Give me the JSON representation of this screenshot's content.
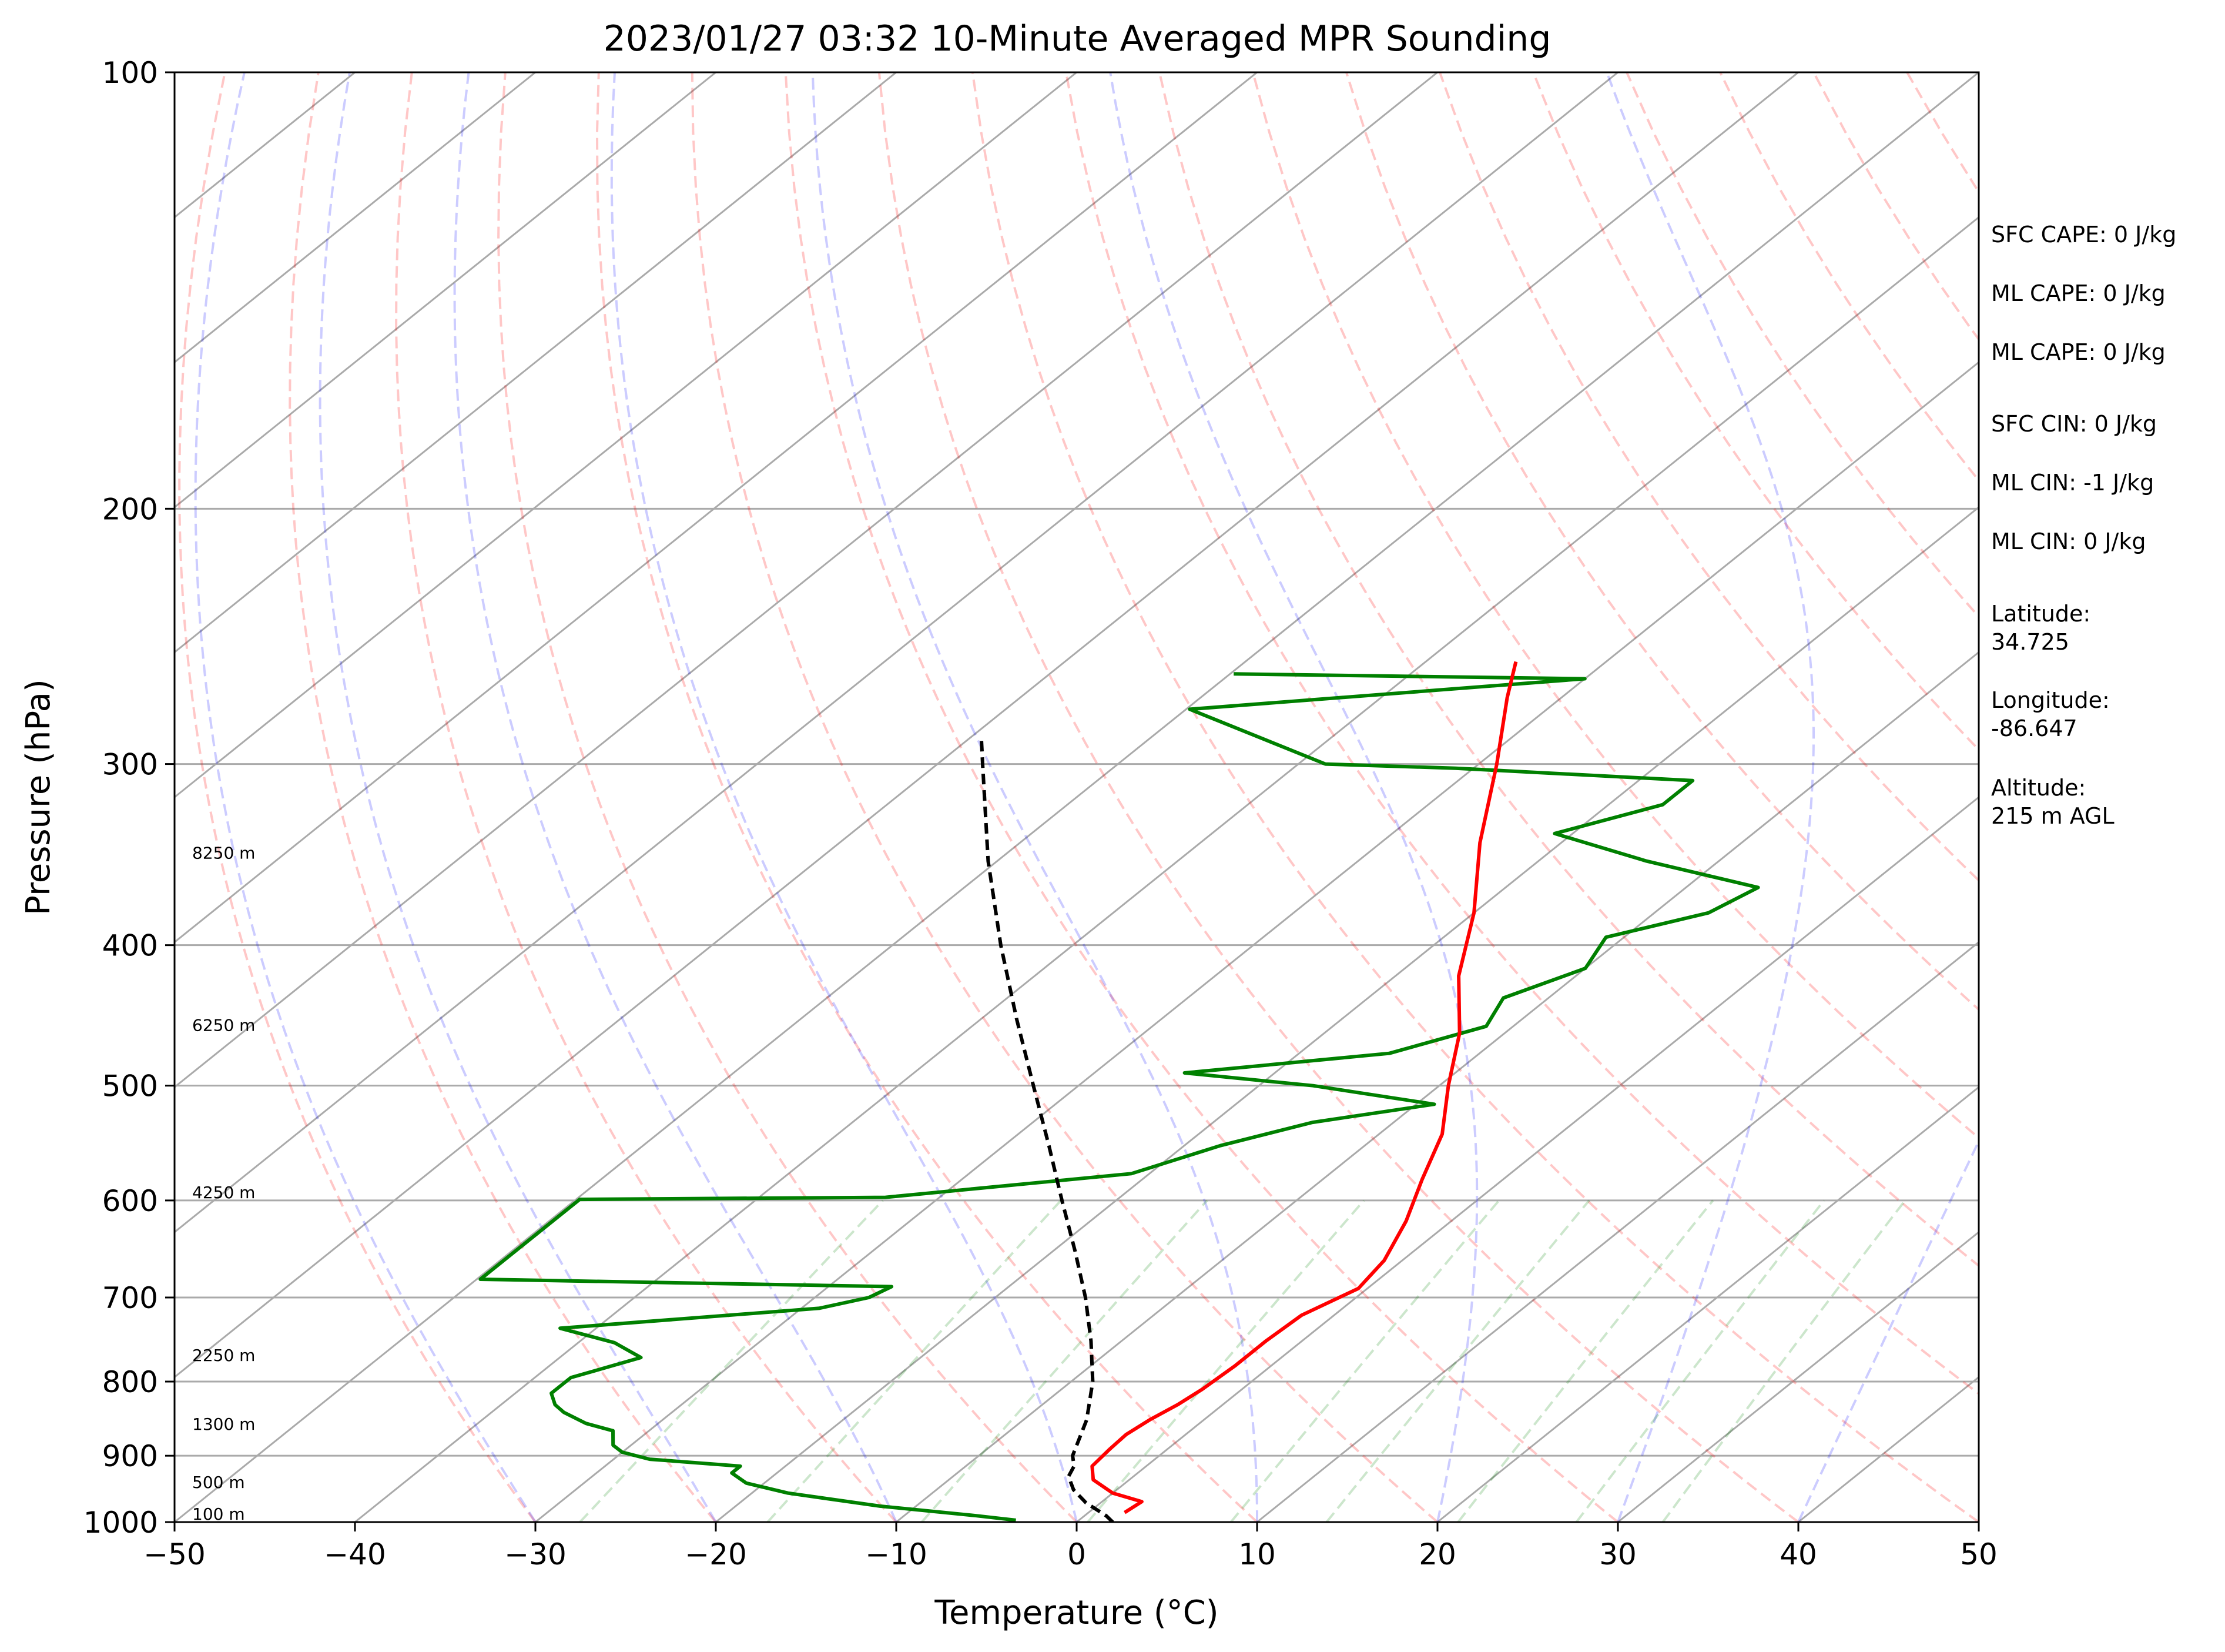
{
  "chart_data": {
    "type": "line",
    "subtype": "skew-t",
    "title": "2023/01/27 03:32 10-Minute Averaged MPR Sounding",
    "xlabel": "Temperature (°C)",
    "ylabel": "Pressure (hPa)",
    "xlim": [
      -50,
      50
    ],
    "ylim": [
      1000,
      100
    ],
    "yscale": "log",
    "x_ticks": [
      "−50",
      "−40",
      "−30",
      "−20",
      "−10",
      "0",
      "10",
      "20",
      "30",
      "40",
      "50"
    ],
    "y_ticks": [
      {
        "p": 100,
        "label": "100"
      },
      {
        "p": 200,
        "label": "200"
      },
      {
        "p": 300,
        "label": "300"
      },
      {
        "p": 400,
        "label": "400"
      },
      {
        "p": 500,
        "label": "500"
      },
      {
        "p": 600,
        "label": "600"
      },
      {
        "p": 700,
        "label": "700"
      },
      {
        "p": 800,
        "label": "800"
      },
      {
        "p": 900,
        "label": "900"
      },
      {
        "p": 1000,
        "label": "1000"
      }
    ],
    "temperature": {
      "color": "#ff0000",
      "points": [
        [
          985,
          2
        ],
        [
          968,
          2.2
        ],
        [
          955,
          0
        ],
        [
          935,
          -2
        ],
        [
          915,
          -3
        ],
        [
          890,
          -3.2
        ],
        [
          870,
          -3.3
        ],
        [
          850,
          -3
        ],
        [
          830,
          -2.5
        ],
        [
          810,
          -2.2
        ],
        [
          780,
          -2
        ],
        [
          750,
          -2
        ],
        [
          720,
          -1.8
        ],
        [
          690,
          -0.5
        ],
        [
          660,
          -1
        ],
        [
          620,
          -2.5
        ],
        [
          580,
          -4.5
        ],
        [
          540,
          -6.5
        ],
        [
          500,
          -9.5
        ],
        [
          460,
          -12.5
        ],
        [
          420,
          -16.5
        ],
        [
          380,
          -20
        ],
        [
          340,
          -24.5
        ],
        [
          300,
          -29
        ],
        [
          270,
          -33
        ],
        [
          255,
          -35
        ]
      ]
    },
    "dewpoint": {
      "color": "#008000",
      "points": [
        [
          997,
          -3.5
        ],
        [
          990,
          -6
        ],
        [
          975,
          -12
        ],
        [
          955,
          -18
        ],
        [
          940,
          -21
        ],
        [
          925,
          -22.5
        ],
        [
          915,
          -22.5
        ],
        [
          905,
          -28
        ],
        [
          895,
          -30
        ],
        [
          885,
          -31
        ],
        [
          865,
          -32
        ],
        [
          855,
          -34
        ],
        [
          840,
          -36
        ],
        [
          830,
          -37
        ],
        [
          815,
          -38
        ],
        [
          808,
          -38
        ],
        [
          795,
          -38
        ],
        [
          770,
          -35.5
        ],
        [
          752,
          -38
        ],
        [
          735,
          -42
        ],
        [
          712,
          -29
        ],
        [
          700,
          -27
        ],
        [
          688,
          -26.5
        ],
        [
          680,
          -49.8
        ],
        [
          599,
          -49.8
        ],
        [
          597,
          -33
        ],
        [
          575,
          -21
        ],
        [
          550,
          -18
        ],
        [
          530,
          -14.5
        ],
        [
          515,
          -9
        ],
        [
          500,
          -17
        ],
        [
          490,
          -25
        ],
        [
          475,
          -15
        ],
        [
          455,
          -11.5
        ],
        [
          435,
          -12.5
        ],
        [
          415,
          -10
        ],
        [
          395,
          -11
        ],
        [
          380,
          -7
        ],
        [
          365,
          -6
        ],
        [
          350,
          -14
        ],
        [
          335,
          -21
        ],
        [
          320,
          -17
        ],
        [
          308,
          -17
        ],
        [
          302,
          -31
        ],
        [
          300,
          -38.5
        ],
        [
          275,
          -49.8
        ],
        [
          262,
          -30
        ],
        [
          260,
          -49.8
        ]
      ]
    },
    "parcel": {
      "color": "#000000",
      "points": [
        [
          1000,
          2
        ],
        [
          990,
          1.2
        ],
        [
          970,
          -0.8
        ],
        [
          950,
          -2.4
        ],
        [
          930,
          -3.6
        ],
        [
          915,
          -4
        ],
        [
          900,
          -4.8
        ],
        [
          850,
          -6.5
        ],
        [
          800,
          -8.8
        ],
        [
          750,
          -11.7
        ],
        [
          700,
          -15
        ],
        [
          650,
          -18.8
        ],
        [
          600,
          -23
        ],
        [
          550,
          -27.5
        ],
        [
          500,
          -32.5
        ],
        [
          450,
          -38
        ],
        [
          400,
          -44
        ],
        [
          350,
          -50.5
        ],
        [
          300,
          -57.5
        ],
        [
          287,
          -59.5
        ]
      ]
    },
    "height_labels": [
      {
        "p": 1000,
        "label": "100 m"
      },
      {
        "p": 951,
        "label": "500 m"
      },
      {
        "p": 867,
        "label": "1300 m"
      },
      {
        "p": 777,
        "label": "2250 m"
      },
      {
        "p": 600,
        "label": "4250 m"
      },
      {
        "p": 460,
        "label": "6250 m"
      },
      {
        "p": 350,
        "label": "8250 m"
      }
    ],
    "grid": true,
    "legend": "none"
  },
  "info_panel": [
    "SFC CAPE: 0 J/kg",
    "ML CAPE: 0 J/kg",
    "ML CAPE: 0 J/kg",
    "SFC CIN: 0 J/kg",
    "ML CIN: -1 J/kg",
    "ML CIN: 0 J/kg",
    "Latitude:\n34.725",
    "Longitude:\n-86.647",
    "Altitude:\n215 m AGL"
  ]
}
